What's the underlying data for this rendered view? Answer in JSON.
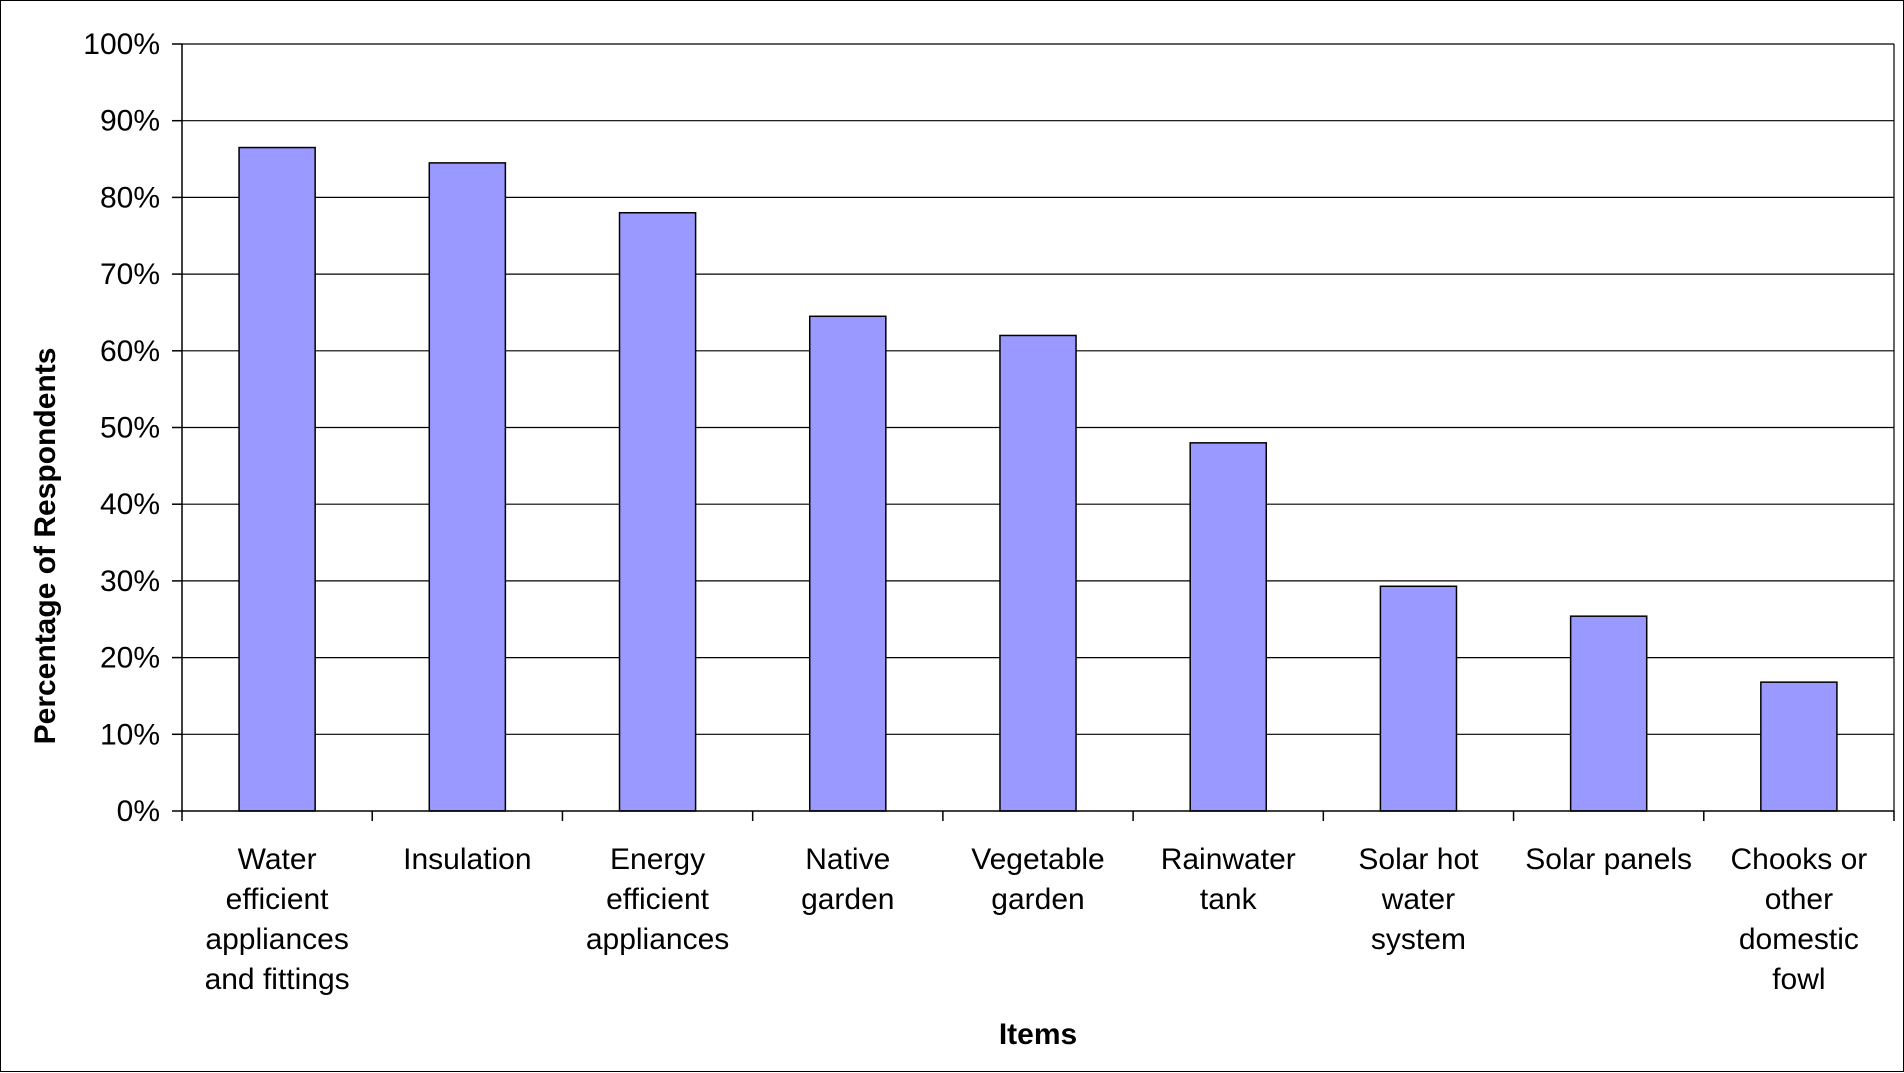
{
  "chart_data": {
    "type": "bar",
    "title": "",
    "xlabel": "Items",
    "ylabel": "Percentage of Respondents",
    "ylim": [
      0,
      100
    ],
    "yticks": [
      "0%",
      "10%",
      "20%",
      "30%",
      "40%",
      "50%",
      "60%",
      "70%",
      "80%",
      "90%",
      "100%"
    ],
    "grid": true,
    "legend": "none",
    "categories": [
      [
        "Water",
        "efficient",
        "appliances",
        "and fittings"
      ],
      [
        "Insulation"
      ],
      [
        "Energy",
        "efficient",
        "appliances"
      ],
      [
        "Native",
        "garden"
      ],
      [
        "Vegetable",
        "garden"
      ],
      [
        "Rainwater",
        "tank"
      ],
      [
        "Solar hot",
        "water",
        "system"
      ],
      [
        "Solar panels"
      ],
      [
        "Chooks or",
        "other",
        "domestic",
        "fowl"
      ]
    ],
    "values": [
      86.5,
      84.5,
      78,
      64.5,
      62,
      48,
      29.3,
      25.4,
      16.8
    ],
    "colors": {
      "bar": "#9999ff",
      "bar_outline": "#000000",
      "grid": "#000000",
      "background": "#ffffff"
    }
  }
}
